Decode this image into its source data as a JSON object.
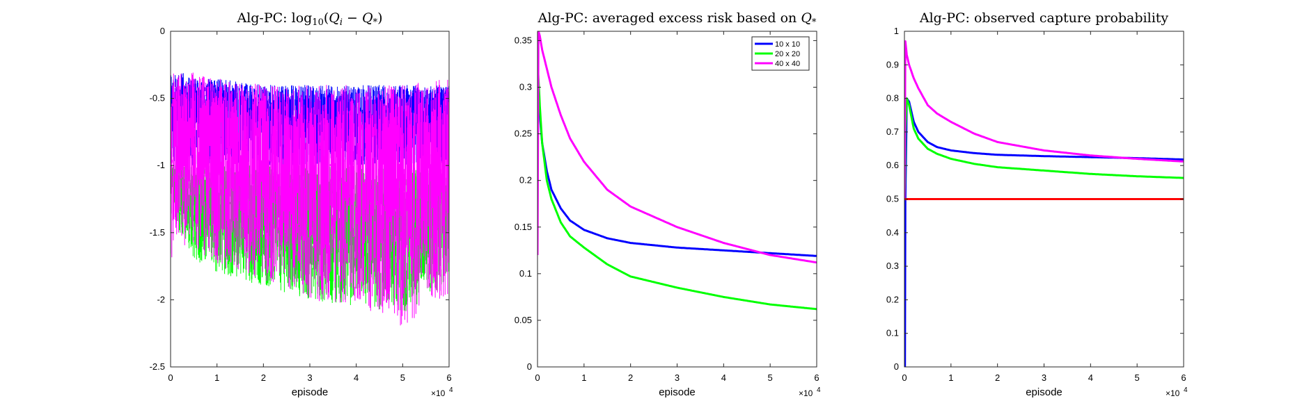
{
  "chart_data": [
    {
      "type": "line",
      "title": "Alg-PC: log10(Q_i − Q_*)",
      "xlabel": "episode",
      "ylabel": "",
      "x_multiplier": "×10^4",
      "xlim": [
        0,
        60000
      ],
      "ylim": [
        -2.5,
        0
      ],
      "xticks": [
        0,
        10000,
        20000,
        30000,
        40000,
        50000,
        60000
      ],
      "xtick_labels": [
        "0",
        "1",
        "2",
        "3",
        "4",
        "5",
        "6"
      ],
      "yticks": [
        -2.5,
        -2,
        -1.5,
        -1,
        -0.5,
        0
      ],
      "ytick_labels": [
        "-2.5",
        "-2",
        "-1.5",
        "-1",
        "-0.5",
        "0"
      ],
      "grid": false,
      "style": "noisy",
      "series": [
        {
          "color": "#00ff00",
          "x": [
            0,
            2000,
            5000,
            10000,
            20000,
            30000,
            40000,
            50000,
            60000
          ],
          "upper": [
            -1.0,
            -1.0,
            -1.0,
            -1.0,
            -1.0,
            -1.0,
            -1.0,
            -1.0,
            -1.0
          ],
          "lower": [
            -1.2,
            -1.5,
            -1.7,
            -1.8,
            -1.9,
            -2.0,
            -2.05,
            -2.1,
            -1.9
          ]
        },
        {
          "color": "#0000ff",
          "x": [
            0,
            2000,
            5000,
            10000,
            20000,
            30000,
            40000,
            50000,
            60000
          ],
          "upper": [
            -0.3,
            -0.3,
            -0.35,
            -0.35,
            -0.4,
            -0.4,
            -0.4,
            -0.4,
            -0.4
          ],
          "lower": [
            -1.0,
            -1.0,
            -1.0,
            -1.0,
            -1.0,
            -1.0,
            -1.0,
            -1.0,
            -1.0
          ]
        },
        {
          "color": "#ff00ff",
          "x": [
            0,
            2000,
            5000,
            10000,
            20000,
            30000,
            40000,
            50000,
            60000
          ],
          "upper": [
            -0.3,
            -0.3,
            -0.3,
            -0.35,
            -0.4,
            -0.4,
            -0.4,
            -0.4,
            -0.35
          ],
          "lower": [
            -1.7,
            -1.6,
            -1.6,
            -1.75,
            -1.85,
            -2.0,
            -2.05,
            -2.2,
            -1.95
          ]
        }
      ]
    },
    {
      "type": "line",
      "title": "Alg-PC: averaged excess risk based on Q_*",
      "xlabel": "episode",
      "ylabel": "",
      "x_multiplier": "×10^4",
      "xlim": [
        0,
        60000
      ],
      "ylim": [
        0,
        0.36
      ],
      "xticks": [
        0,
        10000,
        20000,
        30000,
        40000,
        50000,
        60000
      ],
      "xtick_labels": [
        "0",
        "1",
        "2",
        "3",
        "4",
        "5",
        "6"
      ],
      "yticks": [
        0,
        0.05,
        0.1,
        0.15,
        0.2,
        0.25,
        0.3,
        0.35
      ],
      "ytick_labels": [
        "0",
        "0.05",
        "0.1",
        "0.15",
        "0.2",
        "0.25",
        "0.3",
        "0.35"
      ],
      "grid": false,
      "legend_position": "top-right",
      "series": [
        {
          "name": "10 x 10",
          "color": "#0000ff",
          "x": [
            0,
            500,
            1000,
            2000,
            3000,
            5000,
            7000,
            10000,
            15000,
            20000,
            30000,
            40000,
            50000,
            60000
          ],
          "y": [
            0.28,
            0.27,
            0.24,
            0.21,
            0.19,
            0.17,
            0.157,
            0.147,
            0.138,
            0.133,
            0.128,
            0.125,
            0.122,
            0.119
          ]
        },
        {
          "name": "20 x 20",
          "color": "#00ff00",
          "x": [
            0,
            500,
            1000,
            2000,
            3000,
            5000,
            7000,
            10000,
            15000,
            20000,
            30000,
            40000,
            50000,
            60000
          ],
          "y": [
            0.33,
            0.28,
            0.24,
            0.2,
            0.18,
            0.155,
            0.14,
            0.128,
            0.11,
            0.097,
            0.085,
            0.075,
            0.067,
            0.062
          ]
        },
        {
          "name": "40 x 40",
          "color": "#ff00ff",
          "x": [
            0,
            200,
            500,
            1000,
            2000,
            3000,
            5000,
            7000,
            10000,
            15000,
            20000,
            30000,
            40000,
            50000,
            60000
          ],
          "y": [
            0.12,
            0.36,
            0.355,
            0.34,
            0.32,
            0.3,
            0.27,
            0.245,
            0.22,
            0.19,
            0.172,
            0.15,
            0.133,
            0.12,
            0.112
          ]
        }
      ]
    },
    {
      "type": "line",
      "title": "Alg-PC: observed capture probability",
      "xlabel": "episode",
      "ylabel": "",
      "x_multiplier": "×10^4",
      "xlim": [
        0,
        60000
      ],
      "ylim": [
        0,
        1
      ],
      "xticks": [
        0,
        10000,
        20000,
        30000,
        40000,
        50000,
        60000
      ],
      "xtick_labels": [
        "0",
        "1",
        "2",
        "3",
        "4",
        "5",
        "6"
      ],
      "yticks": [
        0,
        0.1,
        0.2,
        0.3,
        0.4,
        0.5,
        0.6,
        0.7,
        0.8,
        0.9,
        1
      ],
      "ytick_labels": [
        "0",
        "0.1",
        "0.2",
        "0.3",
        "0.4",
        "0.5",
        "0.6",
        "0.7",
        "0.8",
        "0.9",
        "1"
      ],
      "grid": false,
      "series": [
        {
          "color": "#0000ff",
          "x": [
            0,
            100,
            200,
            500,
            1000,
            2000,
            3000,
            5000,
            7000,
            10000,
            15000,
            20000,
            30000,
            40000,
            50000,
            60000
          ],
          "y": [
            0,
            0,
            0.5,
            0.8,
            0.79,
            0.73,
            0.7,
            0.67,
            0.655,
            0.645,
            0.637,
            0.632,
            0.628,
            0.625,
            0.622,
            0.618
          ]
        },
        {
          "color": "#00ff00",
          "x": [
            0,
            100,
            200,
            500,
            1000,
            2000,
            3000,
            5000,
            7000,
            10000,
            15000,
            20000,
            30000,
            40000,
            50000,
            60000
          ],
          "y": [
            0.5,
            0.55,
            0.7,
            0.8,
            0.78,
            0.71,
            0.68,
            0.65,
            0.635,
            0.62,
            0.605,
            0.595,
            0.585,
            0.575,
            0.568,
            0.563
          ]
        },
        {
          "color": "#ff00ff",
          "x": [
            0,
            100,
            200,
            500,
            1000,
            2000,
            3000,
            5000,
            7000,
            10000,
            15000,
            20000,
            30000,
            40000,
            50000,
            60000
          ],
          "y": [
            0.5,
            0.7,
            0.97,
            0.93,
            0.9,
            0.86,
            0.83,
            0.78,
            0.755,
            0.73,
            0.695,
            0.67,
            0.645,
            0.63,
            0.62,
            0.612
          ]
        },
        {
          "color": "#ff0000",
          "x": [
            0,
            60000
          ],
          "y": [
            0.5,
            0.5
          ]
        }
      ]
    }
  ]
}
